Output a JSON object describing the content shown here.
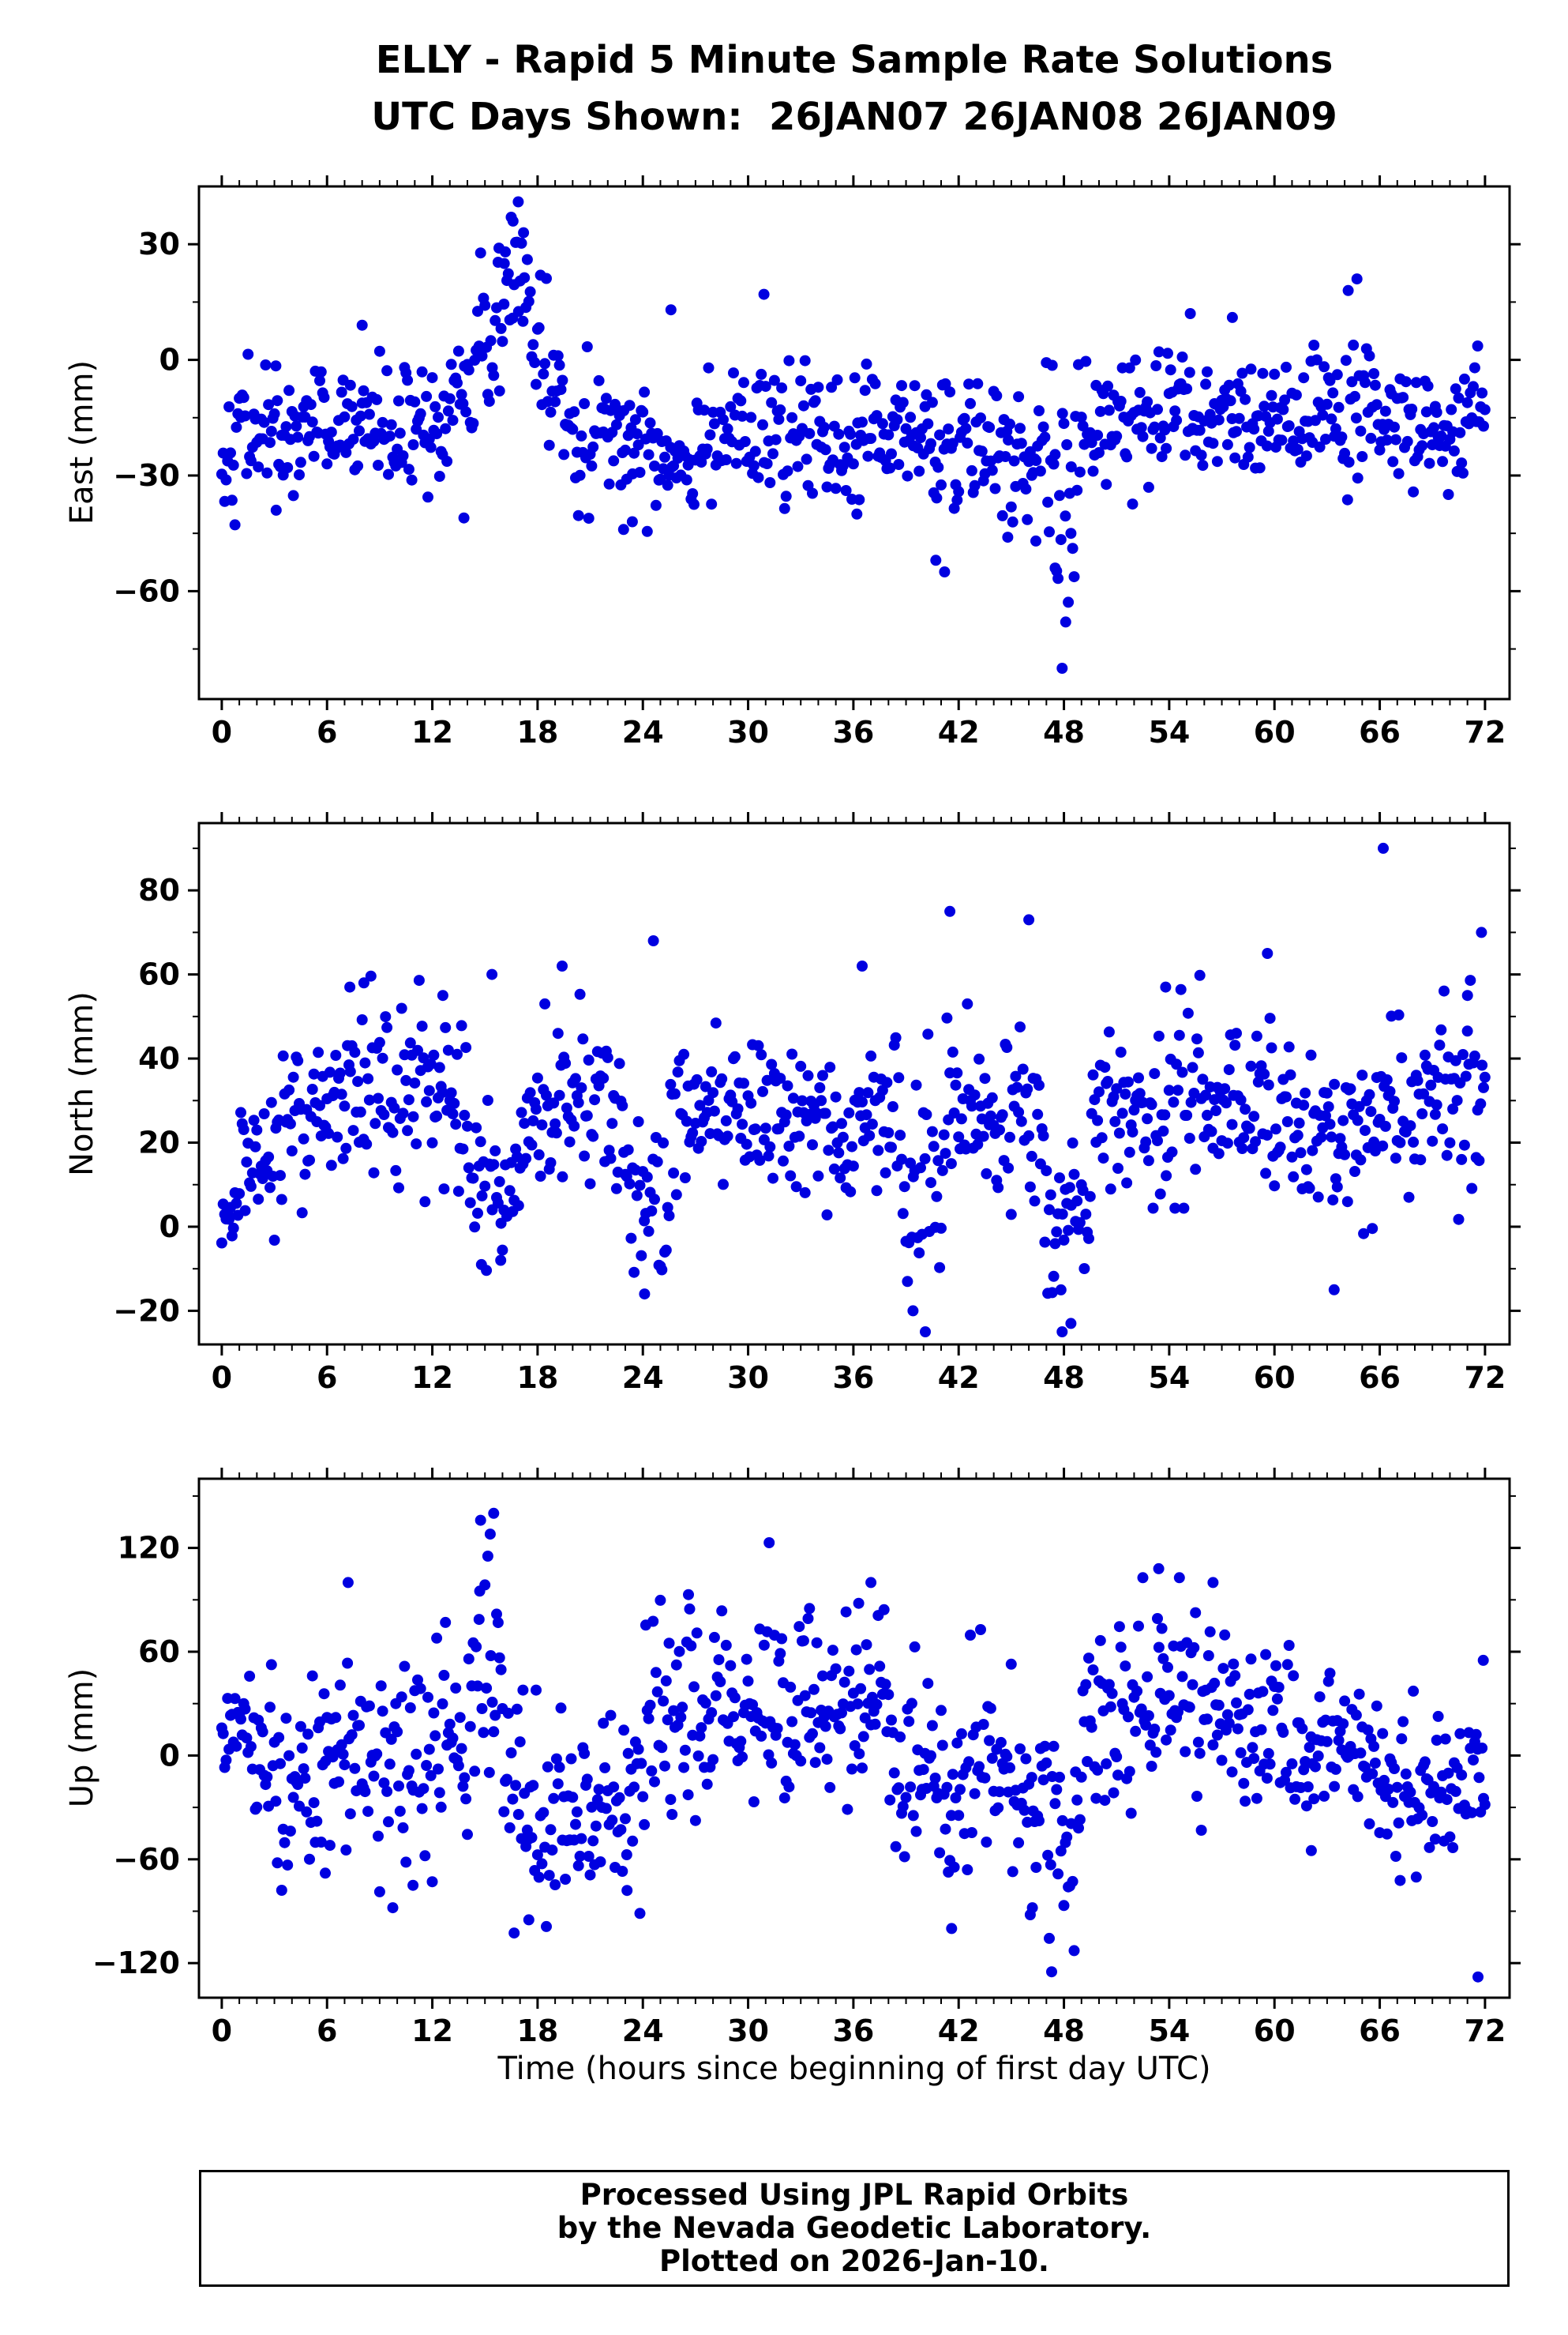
{
  "chart_data": {
    "type": "scatter",
    "title": "ELLY - Rapid 5 Minute Sample Rate Solutions",
    "subtitle": "UTC Days Shown:  26JAN07 26JAN08 26JAN09",
    "xlabel": "Time (hours since beginning of first day UTC)",
    "marker_color": "#0000e0",
    "frame_color": "#000000",
    "grid": false,
    "legend": "none",
    "x_ticks": [
      0,
      6,
      12,
      18,
      24,
      30,
      36,
      42,
      48,
      54,
      60,
      66,
      72
    ],
    "x_minor_step": 1,
    "xlim": [
      -1.3,
      73.4
    ],
    "sample_step_hours": 0.08333,
    "seed": 42,
    "panels": [
      {
        "name": "east",
        "ylabel": "East (mm)",
        "ylim": [
          -88,
          45
        ],
        "yticks": [
          30,
          0,
          -30,
          -60
        ],
        "y_minor_step": 15,
        "segments": [
          [
            0,
            1,
            -22,
            8
          ],
          [
            1,
            5,
            -18,
            8
          ],
          [
            5,
            9,
            -17,
            8
          ],
          [
            9,
            13,
            -18,
            8
          ],
          [
            13,
            14.5,
            -10,
            8
          ],
          [
            14.5,
            16,
            6,
            10
          ],
          [
            16,
            17.5,
            18,
            11
          ],
          [
            17.5,
            18.5,
            4,
            9
          ],
          [
            18.5,
            20,
            -8,
            8
          ],
          [
            20,
            24,
            -20,
            9
          ],
          [
            24,
            27,
            -24,
            8
          ],
          [
            27,
            31,
            -18,
            8
          ],
          [
            31,
            36,
            -21,
            8
          ],
          [
            36,
            40,
            -19,
            8
          ],
          [
            40,
            43,
            -22,
            10
          ],
          [
            43,
            46,
            -25,
            10
          ],
          [
            46,
            47.5,
            -28,
            12
          ],
          [
            47.5,
            49,
            -33,
            16
          ],
          [
            49,
            52,
            -14,
            9
          ],
          [
            52,
            58,
            -16,
            8
          ],
          [
            58,
            63,
            -17,
            8
          ],
          [
            63,
            66,
            -15,
            10
          ],
          [
            66,
            70,
            -17,
            8
          ],
          [
            70,
            72,
            -16,
            8
          ]
        ],
        "outliers": [
          [
            16.9,
            41
          ],
          [
            16.6,
            36
          ],
          [
            17.2,
            33
          ],
          [
            15.8,
            29
          ],
          [
            16.1,
            25
          ],
          [
            47.9,
            -80
          ],
          [
            48.1,
            -68
          ],
          [
            41.2,
            -55
          ],
          [
            47.5,
            -54
          ],
          [
            40.7,
            -52
          ],
          [
            64.7,
            21
          ],
          [
            64.2,
            18
          ],
          [
            30.9,
            17
          ],
          [
            25.6,
            13
          ],
          [
            55.2,
            12
          ],
          [
            8.0,
            9
          ],
          [
            57.6,
            11
          ],
          [
            36.2,
            -40
          ],
          [
            22.9,
            -44
          ],
          [
            23.4,
            -42
          ],
          [
            13.8,
            -41
          ],
          [
            3.1,
            -39
          ],
          [
            44.8,
            -46
          ],
          [
            46.4,
            -47
          ],
          [
            48.4,
            -45
          ]
        ]
      },
      {
        "name": "north",
        "ylabel": "North (mm)",
        "ylim": [
          -28,
          96
        ],
        "yticks": [
          80,
          60,
          40,
          20,
          0,
          -20
        ],
        "y_minor_step": 10,
        "segments": [
          [
            0,
            1,
            2,
            4
          ],
          [
            1,
            3,
            15,
            7
          ],
          [
            3,
            6,
            24,
            9
          ],
          [
            6,
            10,
            31,
            11
          ],
          [
            10,
            14,
            30,
            11
          ],
          [
            14,
            15.5,
            13,
            9
          ],
          [
            15.5,
            17,
            8,
            9
          ],
          [
            17,
            19,
            27,
            10
          ],
          [
            19,
            23,
            30,
            11
          ],
          [
            23,
            25.5,
            8,
            9
          ],
          [
            25.5,
            29,
            28,
            9
          ],
          [
            29,
            33,
            27,
            9
          ],
          [
            33,
            36,
            25,
            9
          ],
          [
            36,
            38.5,
            25,
            10
          ],
          [
            38.5,
            41,
            12,
            13
          ],
          [
            41,
            46,
            27,
            10
          ],
          [
            46,
            47,
            20,
            12
          ],
          [
            47,
            49.5,
            3,
            10
          ],
          [
            49.5,
            53,
            28,
            9
          ],
          [
            53,
            57,
            33,
            11
          ],
          [
            57,
            60,
            31,
            11
          ],
          [
            60,
            63,
            25,
            10
          ],
          [
            63,
            66,
            22,
            10
          ],
          [
            66,
            69,
            28,
            10
          ],
          [
            69,
            72,
            30,
            11
          ]
        ],
        "outliers": [
          [
            66.2,
            90
          ],
          [
            41.5,
            75
          ],
          [
            46.0,
            73
          ],
          [
            24.6,
            68
          ],
          [
            36.5,
            62
          ],
          [
            19.4,
            62
          ],
          [
            15.4,
            60
          ],
          [
            59.6,
            65
          ],
          [
            71.8,
            70
          ],
          [
            71.0,
            55
          ],
          [
            53.8,
            57
          ],
          [
            12.6,
            55
          ],
          [
            8.1,
            58
          ],
          [
            7.3,
            57
          ],
          [
            40.1,
            -25
          ],
          [
            47.9,
            -25
          ],
          [
            48.4,
            -23
          ],
          [
            24.1,
            -16
          ],
          [
            15.9,
            -8
          ],
          [
            63.4,
            -15
          ],
          [
            14.8,
            -9
          ],
          [
            39.4,
            -20
          ]
        ]
      },
      {
        "name": "up",
        "ylabel": "Up (mm)",
        "ylim": [
          -140,
          160
        ],
        "yticks": [
          120,
          60,
          0,
          -60,
          -120
        ],
        "y_minor_step": 30,
        "segments": [
          [
            0,
            1,
            5,
            20
          ],
          [
            1,
            3,
            5,
            25
          ],
          [
            3,
            6,
            -15,
            28
          ],
          [
            6,
            8,
            10,
            28
          ],
          [
            8,
            12,
            -10,
            30
          ],
          [
            12,
            14,
            15,
            30
          ],
          [
            14,
            16,
            45,
            35
          ],
          [
            16,
            19,
            -35,
            28
          ],
          [
            19,
            22,
            -35,
            25
          ],
          [
            22,
            24,
            -25,
            30
          ],
          [
            24,
            26,
            25,
            30
          ],
          [
            26,
            29,
            30,
            28
          ],
          [
            29,
            32,
            25,
            30
          ],
          [
            32,
            35,
            25,
            25
          ],
          [
            35,
            38,
            25,
            25
          ],
          [
            38,
            40,
            -10,
            28
          ],
          [
            40,
            42,
            -15,
            30
          ],
          [
            42,
            45,
            0,
            28
          ],
          [
            45,
            47,
            -35,
            25
          ],
          [
            47,
            49,
            -40,
            28
          ],
          [
            49,
            52,
            20,
            28
          ],
          [
            52,
            55,
            30,
            28
          ],
          [
            55,
            58,
            25,
            28
          ],
          [
            58,
            61,
            15,
            25
          ],
          [
            61,
            64,
            5,
            25
          ],
          [
            64,
            67,
            -5,
            25
          ],
          [
            67,
            70,
            -20,
            22
          ],
          [
            70,
            72,
            -10,
            25
          ]
        ],
        "outliers": [
          [
            15.5,
            140
          ],
          [
            15.3,
            128
          ],
          [
            31.2,
            123
          ],
          [
            7.2,
            100
          ],
          [
            37.0,
            100
          ],
          [
            56.5,
            100
          ],
          [
            53.4,
            108
          ],
          [
            26.6,
            93
          ],
          [
            14.7,
            95
          ],
          [
            33.5,
            85
          ],
          [
            36.3,
            88
          ],
          [
            47.3,
            -125
          ],
          [
            71.6,
            -128
          ],
          [
            17.5,
            -95
          ],
          [
            41.6,
            -100
          ],
          [
            23.1,
            -78
          ],
          [
            10.9,
            -75
          ],
          [
            46.2,
            -88
          ],
          [
            5.9,
            -68
          ],
          [
            62.1,
            -55
          ],
          [
            71.9,
            55
          ]
        ]
      }
    ]
  },
  "footer": {
    "lines": [
      "Processed Using JPL Rapid Orbits",
      "by the Nevada Geodetic Laboratory.",
      "Plotted on 2026-Jan-10."
    ]
  }
}
